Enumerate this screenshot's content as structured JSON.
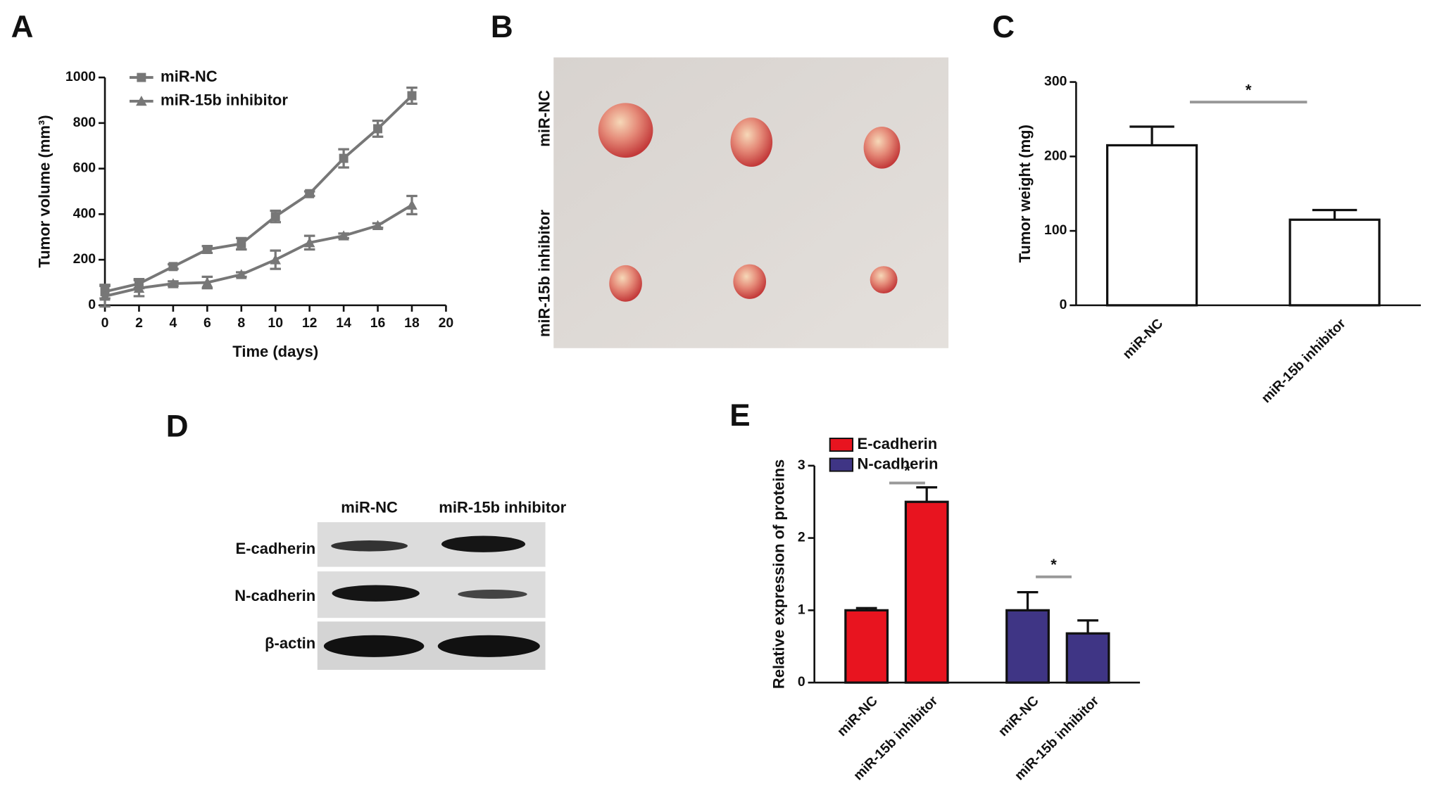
{
  "panel_labels": [
    "A",
    "B",
    "C",
    "D",
    "E"
  ],
  "photo": {
    "row_labels": [
      "miR-NC",
      "miR-15b inhibitor"
    ]
  },
  "blot": {
    "columns": [
      "miR-NC",
      "miR-15b inhibitor"
    ],
    "rows": [
      "E-cadherin",
      "N-cadherin",
      "β-actin"
    ]
  },
  "chart_data": [
    {
      "type": "line",
      "x_label": "Time (days)",
      "y_label": "Tumor volume (mm³)",
      "x": [
        0,
        2,
        4,
        6,
        8,
        10,
        12,
        14,
        16,
        18
      ],
      "xlim": [
        0,
        20
      ],
      "xticks": [
        0,
        2,
        4,
        6,
        8,
        10,
        12,
        14,
        16,
        18,
        20
      ],
      "ylim": [
        0,
        1000
      ],
      "yticks": [
        0,
        200,
        400,
        600,
        800,
        1000
      ],
      "legend": "top-left",
      "series": [
        {
          "name": "miR-NC",
          "color": "#777777",
          "marker": "square",
          "values": [
            60,
            95,
            170,
            245,
            270,
            390,
            490,
            645,
            775,
            920
          ],
          "errors": [
            30,
            20,
            10,
            15,
            25,
            25,
            10,
            40,
            35,
            35
          ]
        },
        {
          "name": "miR-15b inhibitor",
          "color": "#777777",
          "marker": "triangle",
          "values": [
            40,
            75,
            95,
            100,
            135,
            200,
            275,
            305,
            350,
            440
          ],
          "errors": [
            45,
            35,
            10,
            25,
            10,
            40,
            30,
            10,
            10,
            40
          ]
        }
      ]
    },
    {
      "type": "bar",
      "y_label": "Tumor weight (mg)",
      "categories": [
        "miR-NC",
        "miR-15b inhibitor"
      ],
      "values": [
        215,
        115
      ],
      "errors": [
        25,
        13
      ],
      "color": "#ffffff",
      "ylim": [
        0,
        300
      ],
      "yticks": [
        0,
        100,
        200,
        300
      ],
      "annotations": [
        "*"
      ]
    },
    {
      "type": "bar",
      "y_label": "Relative expression of proteins",
      "categories": [
        "miR-NC",
        "miR-15b inhibitor",
        "miR-NC",
        "miR-15b inhibitor"
      ],
      "ylim": [
        0,
        3
      ],
      "yticks": [
        0,
        1,
        2,
        3
      ],
      "legend": "top-left",
      "annotations": [
        "*",
        "*"
      ],
      "series": [
        {
          "name": "E-cadherin",
          "color": "#e8141f",
          "values": [
            1.0,
            2.5,
            null,
            null
          ],
          "errors": [
            0.03,
            0.2,
            null,
            null
          ]
        },
        {
          "name": "N-cadherin",
          "color": "#3f3585",
          "values": [
            null,
            null,
            1.0,
            0.68
          ],
          "errors": [
            null,
            null,
            0.25,
            0.18
          ]
        }
      ]
    }
  ]
}
